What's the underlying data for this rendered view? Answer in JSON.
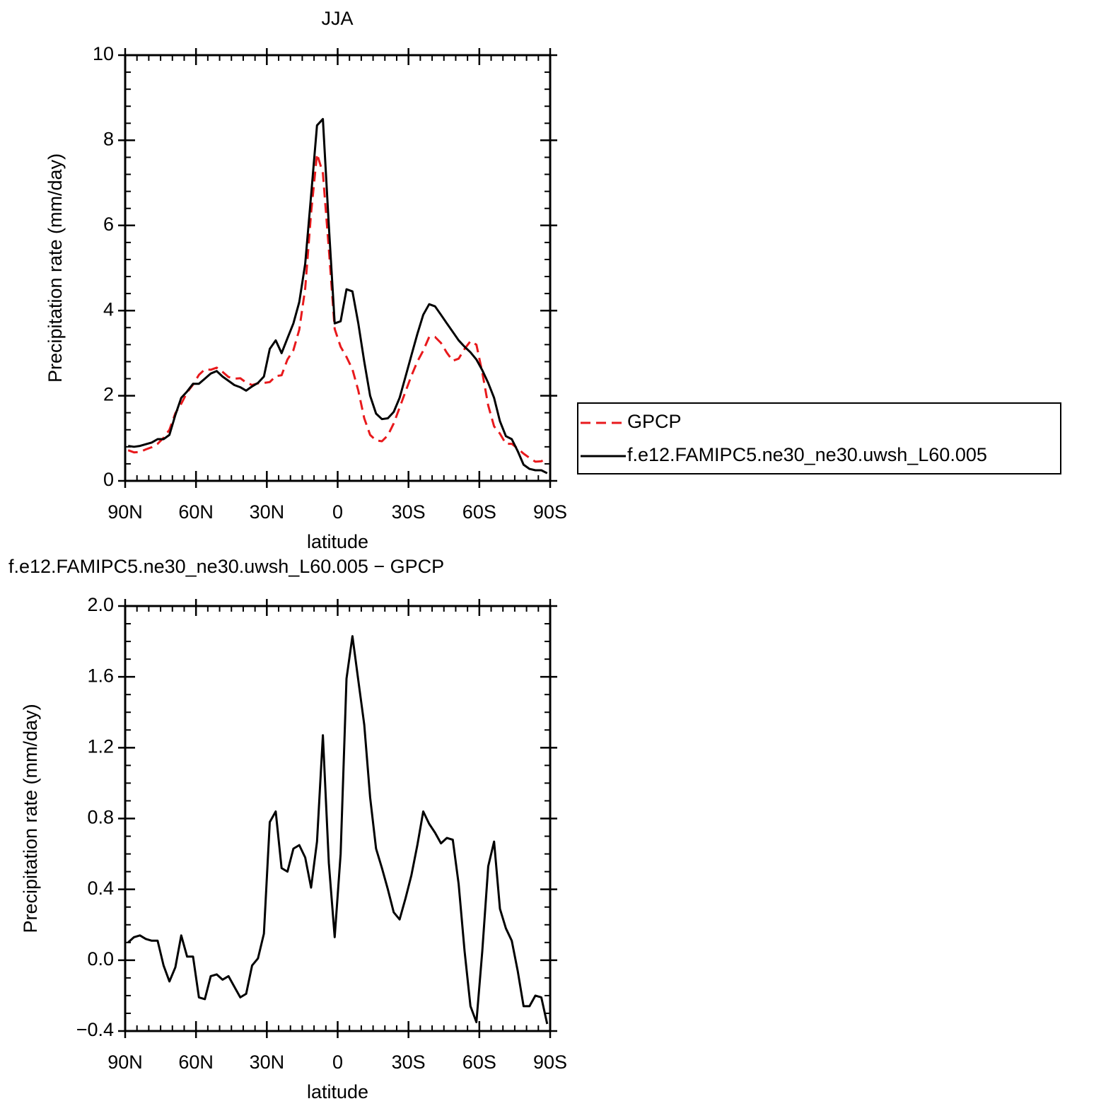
{
  "chart_data": [
    {
      "type": "line",
      "title": "JJA",
      "xlabel": "latitude",
      "ylabel": "Precipitation rate (mm/day)",
      "x": [
        88.75,
        86.25,
        83.75,
        81.25,
        78.75,
        76.25,
        73.75,
        71.25,
        68.75,
        66.25,
        63.75,
        61.25,
        58.75,
        56.25,
        53.75,
        51.25,
        48.75,
        46.25,
        43.75,
        41.25,
        38.75,
        36.25,
        33.75,
        31.25,
        28.75,
        26.25,
        23.75,
        21.25,
        18.75,
        16.25,
        13.75,
        11.25,
        8.75,
        6.25,
        3.75,
        1.25,
        -1.25,
        -3.75,
        -6.25,
        -8.75,
        -11.25,
        -13.75,
        -16.25,
        -18.75,
        -21.25,
        -23.75,
        -26.25,
        -28.75,
        -31.25,
        -33.75,
        -36.25,
        -38.75,
        -41.25,
        -43.75,
        -46.25,
        -48.75,
        -51.25,
        -53.75,
        -56.25,
        -58.75,
        -61.25,
        -63.75,
        -66.25,
        -68.75,
        -71.25,
        -73.75,
        -76.25,
        -78.75,
        -81.25,
        -83.75,
        -86.25,
        -88.75
      ],
      "series": [
        {
          "name": "GPCP",
          "color": "#e8191c",
          "line_style": "dashed",
          "values": [
            0.72,
            0.67,
            0.68,
            0.74,
            0.79,
            0.87,
            1.01,
            1.2,
            1.59,
            1.81,
            2.08,
            2.26,
            2.49,
            2.62,
            2.61,
            2.66,
            2.56,
            2.44,
            2.4,
            2.41,
            2.31,
            2.25,
            2.29,
            2.3,
            2.32,
            2.46,
            2.48,
            2.85,
            3.07,
            3.55,
            4.52,
            6.29,
            7.68,
            7.23,
            5.45,
            3.57,
            3.15,
            2.91,
            2.62,
            2.12,
            1.47,
            1.08,
            0.95,
            0.93,
            1.07,
            1.35,
            1.72,
            2.1,
            2.47,
            2.8,
            3.06,
            3.38,
            3.38,
            3.24,
            3.01,
            2.82,
            2.87,
            3.1,
            3.28,
            3.2,
            2.55,
            1.77,
            1.28,
            1.11,
            0.87,
            0.87,
            0.76,
            0.64,
            0.54,
            0.45,
            0.46,
            0.54
          ]
        },
        {
          "name": "f.e12.FAMIPC5.ne30_ne30.uwsh_L60.005",
          "color": "#000000",
          "line_style": "solid",
          "values": [
            0.82,
            0.8,
            0.82,
            0.86,
            0.9,
            0.98,
            0.98,
            1.08,
            1.55,
            1.95,
            2.1,
            2.28,
            2.28,
            2.4,
            2.52,
            2.58,
            2.45,
            2.35,
            2.25,
            2.2,
            2.12,
            2.22,
            2.3,
            2.45,
            3.1,
            3.3,
            3.0,
            3.35,
            3.7,
            4.2,
            5.1,
            6.7,
            8.35,
            8.5,
            6.0,
            3.7,
            3.75,
            4.5,
            4.45,
            3.7,
            2.8,
            2.0,
            1.58,
            1.45,
            1.47,
            1.62,
            1.95,
            2.45,
            2.95,
            3.45,
            3.9,
            4.15,
            4.1,
            3.9,
            3.7,
            3.5,
            3.3,
            3.15,
            3.02,
            2.85,
            2.6,
            2.3,
            1.95,
            1.4,
            1.05,
            0.98,
            0.7,
            0.38,
            0.28,
            0.25,
            0.25,
            0.18
          ]
        }
      ],
      "xlim": [
        90,
        -90
      ],
      "xticks": [
        {
          "value": 90,
          "label": "90N"
        },
        {
          "value": 60,
          "label": "60N"
        },
        {
          "value": 30,
          "label": "30N"
        },
        0,
        {
          "value": -30,
          "label": "30S"
        },
        {
          "value": -60,
          "label": "60S"
        },
        {
          "value": -90,
          "label": "90S"
        }
      ],
      "ylim": [
        0,
        10
      ],
      "yticks": [
        0,
        2,
        4,
        6,
        8,
        10
      ],
      "legend": "right"
    },
    {
      "type": "line",
      "title": "f.e12.FAMIPC5.ne30_ne30.uwsh_L60.005 − GPCP",
      "xlabel": "latitude",
      "ylabel": "Precipitation rate (mm/day)",
      "x": [
        88.75,
        86.25,
        83.75,
        81.25,
        78.75,
        76.25,
        73.75,
        71.25,
        68.75,
        66.25,
        63.75,
        61.25,
        58.75,
        56.25,
        53.75,
        51.25,
        48.75,
        46.25,
        43.75,
        41.25,
        38.75,
        36.25,
        33.75,
        31.25,
        28.75,
        26.25,
        23.75,
        21.25,
        18.75,
        16.25,
        13.75,
        11.25,
        8.75,
        6.25,
        3.75,
        1.25,
        -1.25,
        -3.75,
        -6.25,
        -8.75,
        -11.25,
        -13.75,
        -16.25,
        -18.75,
        -21.25,
        -23.75,
        -26.25,
        -28.75,
        -31.25,
        -33.75,
        -36.25,
        -38.75,
        -41.25,
        -43.75,
        -46.25,
        -48.75,
        -51.25,
        -53.75,
        -56.25,
        -58.75,
        -61.25,
        -63.75,
        -66.25,
        -68.75,
        -71.25,
        -73.75,
        -76.25,
        -78.75,
        -81.25,
        -83.75,
        -86.25,
        -88.75
      ],
      "values": [
        0.1,
        0.13,
        0.14,
        0.12,
        0.11,
        0.11,
        -0.03,
        -0.12,
        -0.04,
        0.14,
        0.02,
        0.02,
        -0.21,
        -0.22,
        -0.09,
        -0.08,
        -0.11,
        -0.09,
        -0.15,
        -0.21,
        -0.19,
        -0.03,
        0.01,
        0.15,
        0.78,
        0.84,
        0.52,
        0.5,
        0.63,
        0.65,
        0.58,
        0.41,
        0.67,
        1.27,
        0.55,
        0.13,
        0.6,
        1.59,
        1.83,
        1.58,
        1.33,
        0.92,
        0.63,
        0.52,
        0.4,
        0.27,
        0.23,
        0.35,
        0.48,
        0.65,
        0.84,
        0.77,
        0.72,
        0.66,
        0.69,
        0.68,
        0.43,
        0.05,
        -0.26,
        -0.35,
        0.05,
        0.53,
        0.67,
        0.29,
        0.18,
        0.11,
        -0.06,
        -0.26,
        -0.26,
        -0.2,
        -0.21,
        -0.36
      ],
      "color": "#000000",
      "xlim": [
        90,
        -90
      ],
      "xticks": [
        {
          "value": 90,
          "label": "90N"
        },
        {
          "value": 60,
          "label": "60N"
        },
        {
          "value": 30,
          "label": "30N"
        },
        0,
        {
          "value": -30,
          "label": "30S"
        },
        {
          "value": -60,
          "label": "60S"
        },
        {
          "value": -90,
          "label": "90S"
        }
      ],
      "ylim": [
        -0.4,
        2
      ],
      "yticks": [
        {
          "value": -0.4,
          "label": "−0.4"
        },
        {
          "value": 0,
          "label": "0.0"
        },
        {
          "value": 0.4,
          "label": "0.4"
        },
        {
          "value": 0.8,
          "label": "0.8"
        },
        {
          "value": 1.2,
          "label": "1.2"
        },
        {
          "value": 1.6,
          "label": "1.6"
        },
        {
          "value": 2,
          "label": "2.0"
        }
      ]
    }
  ]
}
